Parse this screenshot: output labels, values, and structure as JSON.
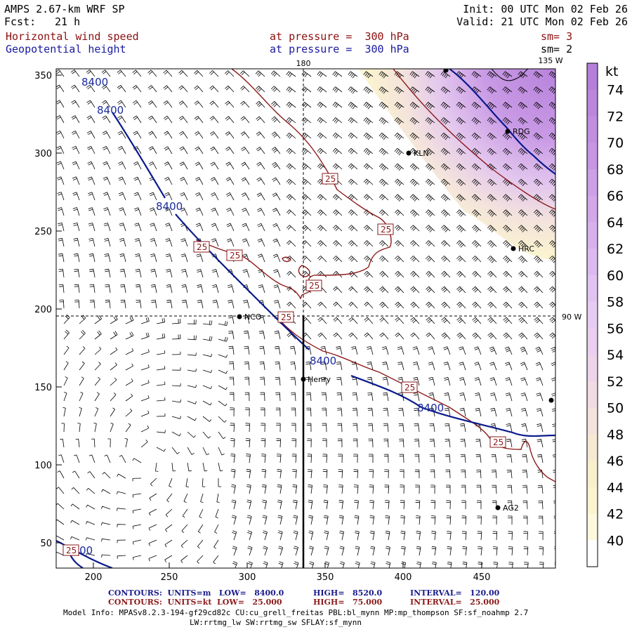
{
  "header": {
    "model": "AMPS 2.67-km WRF SP",
    "fcst_label": "Fcst:",
    "fcst_value": "21 h",
    "init": "Init: 00 UTC Mon 02 Feb 26",
    "valid": "Valid: 21 UTC Mon 02 Feb 26",
    "field1": "Horizontal wind speed",
    "field2": "Geopotential height",
    "level1": "at pressure =  300 hPa",
    "level2": "at pressure =  300 hPa",
    "sm1": "sm= 3",
    "sm2": "sm= 2"
  },
  "map": {
    "x_ticks": [
      "200",
      "250",
      "300",
      "350",
      "400",
      "450"
    ],
    "y_ticks": [
      "350",
      "300",
      "250",
      "200",
      "150",
      "100",
      "50"
    ],
    "lon_labels": {
      "top_180": "180",
      "top_135w": "135 W",
      "right_90w": "90 W"
    },
    "height_contour_label": "8400",
    "speed_contour_label": "25",
    "stations": [
      "RDG",
      "KLN",
      "HRC",
      "NCO",
      "Henry",
      "AG2"
    ],
    "colors": {
      "height_contour": "#0a1a8c",
      "speed_contour": "#8b1a1a",
      "barb": "#000000"
    }
  },
  "colorbar": {
    "unit": "kt",
    "labels": [
      "74",
      "72",
      "70",
      "68",
      "66",
      "64",
      "62",
      "60",
      "58",
      "56",
      "54",
      "52",
      "50",
      "48",
      "46",
      "44",
      "42",
      "40"
    ],
    "colors": [
      "#b57fd9",
      "#bb86dc",
      "#c18ee0",
      "#c796e3",
      "#cd9fe6",
      "#d2a8e9",
      "#d7b1ec",
      "#dcbaef",
      "#e1c3f1",
      "#e6ccf3",
      "#eacff0",
      "#eed4ea",
      "#f1dbe4",
      "#f4e2dc",
      "#f6e9d4",
      "#f8efcd",
      "#faf4cf",
      "#fcf9df",
      "#ffffff"
    ]
  },
  "footer": {
    "row1_a": "CONTOURS:  UNITS=m   LOW=   8400.0",
    "row1_b": "HIGH=   8520.0",
    "row1_c": "INTERVAL=   120.00",
    "row2_a": "CONTOURS:  UNITS=kt  LOW=   25.000",
    "row2_b": "HIGH=   75.000",
    "row2_c": "INTERVAL=   25.000",
    "model_info": "Model Info: MPASv8.2.3-194-gf29cd82c CU:cu_grell_freitas PBL:bl_mynn MP:mp_thompson SF:sf_noahmp 2.7",
    "model_info2": "LW:rrtmg_lw SW:rrtmg_sw SFLAY:sf_mynn"
  }
}
